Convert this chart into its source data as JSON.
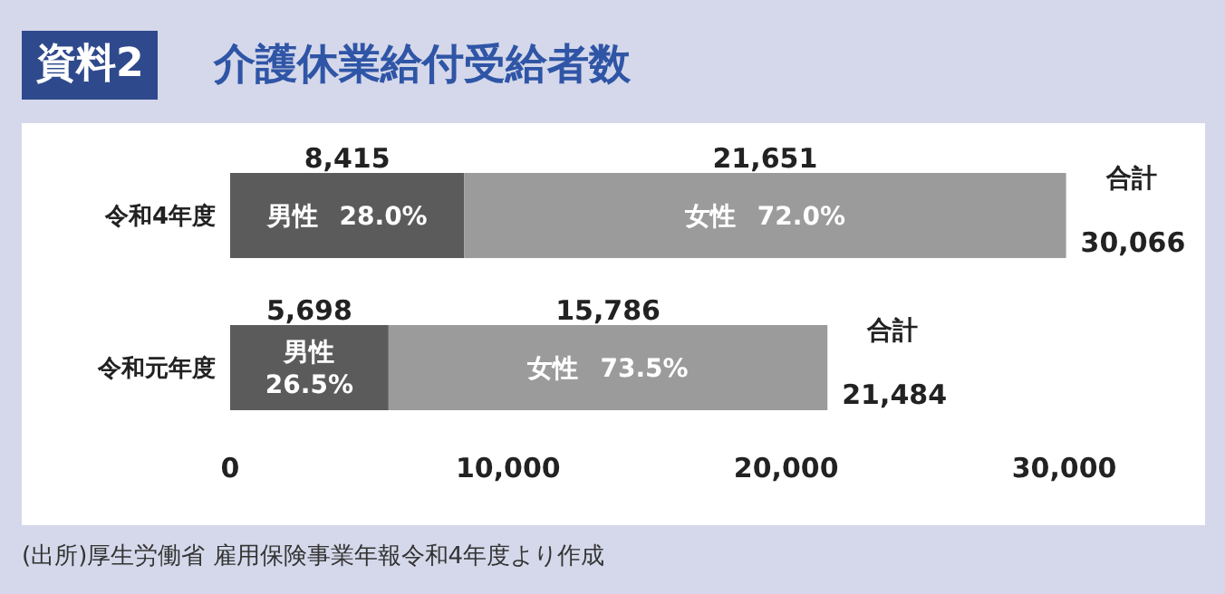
{
  "chart_data": {
    "type": "bar",
    "orientation": "horizontal",
    "stacked": true,
    "title": "介護休業給付受給者数",
    "categories": [
      "令和4年度",
      "令和元年度"
    ],
    "series": [
      {
        "name": "男性",
        "color": "#5b5b5b",
        "values": [
          8415,
          5698
        ],
        "value_labels": [
          "8,415",
          "5,698"
        ]
      },
      {
        "name": "女性",
        "color": "#9b9b9b",
        "values": [
          21651,
          15786
        ],
        "value_labels": [
          "21,651",
          "15,786"
        ]
      }
    ],
    "totals": [
      "30,066",
      "21,484"
    ],
    "xlim": [
      0,
      35000
    ],
    "xticks": [
      {
        "value": 0,
        "label": "0"
      },
      {
        "value": 10000,
        "label": "10,000"
      },
      {
        "value": 20000,
        "label": "20,000"
      },
      {
        "value": 30000,
        "label": "30,000"
      }
    ],
    "annotations": [
      "資料2",
      "28.0%",
      "72.0%",
      "26.5%",
      "73.5%",
      {
        "text": "合計",
        "x": 30066,
        "y": "令和4年度"
      },
      {
        "text": "合計",
        "x": 21484,
        "y": "令和元年度"
      },
      "(出所)厚生労働省 雇用保険事業年報令和4年度より作成"
    ]
  }
}
